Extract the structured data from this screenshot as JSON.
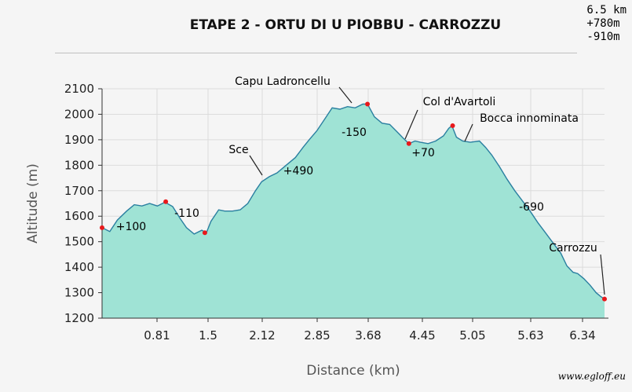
{
  "header": {
    "title": "ETAPE 2 - ORTU DI U PIOBBU - CARROZZU",
    "distance": "6.5 km",
    "ascent": "+780m",
    "descent": "-910m"
  },
  "credit": "www.egloff.eu",
  "chart_data": {
    "type": "area",
    "xlabel": "Distance (km)",
    "ylabel": "Altitude (m)",
    "xlim": [
      0,
      6.55
    ],
    "ylim": [
      1200,
      2100
    ],
    "x_ticks": [
      "0.81",
      "1.5",
      "2.12",
      "2.85",
      "3.68",
      "4.45",
      "5.05",
      "5.63",
      "6.34"
    ],
    "y_ticks": [
      1200,
      1300,
      1400,
      1500,
      1600,
      1700,
      1800,
      1900,
      2000,
      2100
    ],
    "grid": true,
    "fill_color": "#9fe3d5",
    "line_color": "#2a7fa0",
    "marker_color": "#e8191b",
    "profile": [
      [
        0.0,
        1555
      ],
      [
        0.1,
        1540
      ],
      [
        0.2,
        1585
      ],
      [
        0.32,
        1620
      ],
      [
        0.42,
        1645
      ],
      [
        0.52,
        1640
      ],
      [
        0.62,
        1650
      ],
      [
        0.72,
        1640
      ],
      [
        0.82,
        1655
      ],
      [
        0.92,
        1638
      ],
      [
        1.02,
        1590
      ],
      [
        1.1,
        1555
      ],
      [
        1.2,
        1530
      ],
      [
        1.3,
        1545
      ],
      [
        1.36,
        1535
      ],
      [
        1.42,
        1580
      ],
      [
        1.52,
        1625
      ],
      [
        1.6,
        1620
      ],
      [
        1.7,
        1620
      ],
      [
        1.8,
        1625
      ],
      [
        1.9,
        1650
      ],
      [
        2.0,
        1700
      ],
      [
        2.08,
        1735
      ],
      [
        2.18,
        1755
      ],
      [
        2.28,
        1770
      ],
      [
        2.4,
        1800
      ],
      [
        2.52,
        1830
      ],
      [
        2.62,
        1870
      ],
      [
        2.7,
        1900
      ],
      [
        2.8,
        1935
      ],
      [
        2.9,
        1980
      ],
      [
        3.0,
        2025
      ],
      [
        3.1,
        2020
      ],
      [
        3.2,
        2030
      ],
      [
        3.3,
        2025
      ],
      [
        3.4,
        2040
      ],
      [
        3.46,
        2040
      ],
      [
        3.55,
        1990
      ],
      [
        3.65,
        1965
      ],
      [
        3.75,
        1960
      ],
      [
        3.85,
        1930
      ],
      [
        3.93,
        1905
      ],
      [
        4.0,
        1885
      ],
      [
        4.08,
        1895
      ],
      [
        4.15,
        1890
      ],
      [
        4.25,
        1885
      ],
      [
        4.35,
        1895
      ],
      [
        4.45,
        1915
      ],
      [
        4.52,
        1945
      ],
      [
        4.56,
        1955
      ],
      [
        4.62,
        1910
      ],
      [
        4.7,
        1895
      ],
      [
        4.8,
        1890
      ],
      [
        4.92,
        1895
      ],
      [
        5.0,
        1870
      ],
      [
        5.08,
        1840
      ],
      [
        5.18,
        1795
      ],
      [
        5.28,
        1745
      ],
      [
        5.38,
        1700
      ],
      [
        5.48,
        1660
      ],
      [
        5.58,
        1620
      ],
      [
        5.68,
        1575
      ],
      [
        5.78,
        1535
      ],
      [
        5.88,
        1495
      ],
      [
        5.98,
        1455
      ],
      [
        6.06,
        1405
      ],
      [
        6.14,
        1380
      ],
      [
        6.2,
        1375
      ],
      [
        6.28,
        1355
      ],
      [
        6.36,
        1330
      ],
      [
        6.44,
        1300
      ],
      [
        6.5,
        1285
      ],
      [
        6.55,
        1275
      ]
    ],
    "markers": [
      [
        0.0,
        1555
      ],
      [
        0.83,
        1657
      ],
      [
        1.34,
        1535
      ],
      [
        3.46,
        2040
      ],
      [
        4.0,
        1885
      ],
      [
        4.57,
        1955
      ],
      [
        6.55,
        1275
      ]
    ],
    "place_labels": [
      {
        "label": "Capu Ladroncellu",
        "x": 3.46,
        "y": 2040
      },
      {
        "label": "Col d'Avartoli",
        "x": 4.08,
        "y": 1895
      },
      {
        "label": "Bocca innominata",
        "x": 4.9,
        "y": 1895
      },
      {
        "label": "Sce",
        "x": 2.08,
        "y": 1745
      },
      {
        "label": "Carrozzu",
        "x": 6.55,
        "y": 1275
      }
    ],
    "segment_labels": [
      {
        "label": "+100",
        "x": 0.38,
        "y": 1560
      },
      {
        "label": "-110",
        "x": 1.08,
        "y": 1610
      },
      {
        "label": "+490",
        "x": 2.55,
        "y": 1760
      },
      {
        "label": "-150",
        "x": 3.52,
        "y": 1925
      },
      {
        "label": "+70",
        "x": 4.1,
        "y": 1840
      },
      {
        "label": "-690",
        "x": 5.6,
        "y": 1625
      }
    ]
  }
}
